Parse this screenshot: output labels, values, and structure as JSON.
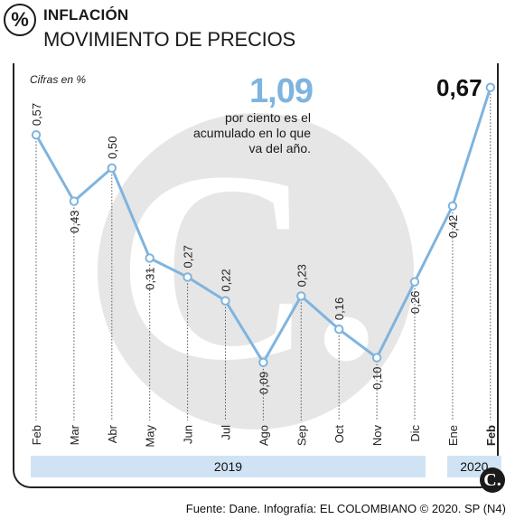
{
  "header": {
    "badge_symbol": "%",
    "section_label": "INFLACIÓN",
    "headline": "MOVIMIENTO DE PRECIOS"
  },
  "units_note": "Cifras en %",
  "highlight": {
    "accum_value": "1,09",
    "accum_text": "por ciento es el acumulado en lo que va del año.",
    "last_value": "0,67"
  },
  "footer": "Fuente: Dane. Infografía: EL COLOMBIANO © 2020. SP (N4)",
  "colors": {
    "line": "#7fb4de",
    "band": "#cfe3f5",
    "watermark": "#e6e6e6"
  },
  "chart_data": {
    "type": "line",
    "categories": [
      "Feb",
      "Mar",
      "Abr",
      "May",
      "Jun",
      "Jul",
      "Ago",
      "Sep",
      "Oct",
      "Nov",
      "Dic",
      "Ene",
      "Feb"
    ],
    "values": [
      0.57,
      0.43,
      0.5,
      0.31,
      0.27,
      0.22,
      0.09,
      0.23,
      0.16,
      0.1,
      0.26,
      0.42,
      0.67
    ],
    "value_labels": [
      "0,57",
      "0,43",
      "0,50",
      "0,31",
      "0,27",
      "0,22",
      "0,09",
      "0,23",
      "0,16",
      "0,10",
      "0,26",
      "0,42",
      "0,67"
    ],
    "label_position": [
      "above",
      "below",
      "above",
      "below",
      "above",
      "above",
      "below",
      "above",
      "above",
      "below",
      "below",
      "below",
      "above"
    ],
    "years": [
      {
        "label": "2019",
        "from": 0,
        "to": 10
      },
      {
        "label": "2020",
        "from": 11,
        "to": 12
      }
    ],
    "ylim": [
      0,
      0.7
    ],
    "grid": false
  }
}
